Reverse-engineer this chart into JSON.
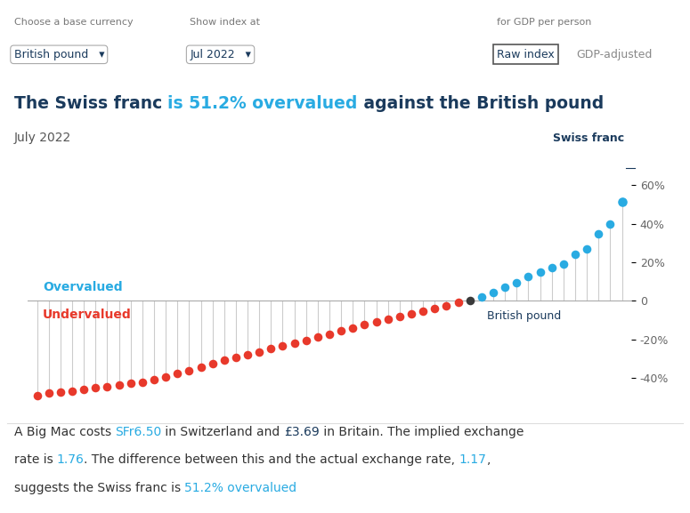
{
  "values": [
    -49.5,
    -48.0,
    -47.5,
    -46.8,
    -46.0,
    -45.2,
    -44.5,
    -43.8,
    -43.0,
    -42.5,
    -41.0,
    -39.5,
    -38.0,
    -36.5,
    -34.5,
    -32.8,
    -31.0,
    -29.5,
    -28.0,
    -26.5,
    -25.0,
    -23.5,
    -22.0,
    -20.5,
    -19.0,
    -17.5,
    -15.5,
    -14.0,
    -12.5,
    -11.0,
    -9.5,
    -8.0,
    -7.0,
    -5.5,
    -4.0,
    -2.5,
    -1.0,
    0.0,
    2.0,
    4.5,
    7.0,
    9.5,
    12.5,
    15.0,
    17.0,
    19.0,
    24.0,
    27.0,
    35.0,
    40.0,
    51.2
  ],
  "british_pound_index": 37,
  "swiss_franc_index": 50,
  "overvalued_color": "#29abe2",
  "undervalued_color": "#e8392b",
  "neutral_color": "#3a3a3a",
  "line_color": "#cccccc",
  "zero_line_color": "#aaaaaa",
  "label_dark_color": "#1a3a5c",
  "label_gray_color": "#555555",
  "background_color": "#ffffff",
  "ylim": [
    -57,
    67
  ],
  "yticks": [
    -40,
    -20,
    0,
    20,
    40,
    60
  ],
  "title_part1": "The Swiss franc ",
  "title_part2": "is 51.2% overvalued",
  "title_part3": " against the British pound",
  "subtitle": "July 2022",
  "overvalued_label": "Overvalued",
  "undervalued_label": "Undervalued",
  "swiss_franc_label": "Swiss franc",
  "british_pound_label": "British pound",
  "ui_base_label": "Choose a base currency",
  "ui_base_value": "British pound",
  "ui_date_label": "Show index at",
  "ui_date_value": "Jul 2022",
  "ui_gdp_label": "for GDP per person",
  "ui_raw_label": "Raw index",
  "ui_gdp_adj_label": "GDP-adjusted",
  "footer_line1": [
    [
      "A Big Mac costs ",
      "#333333"
    ],
    [
      "SFr6.50",
      "#29abe2"
    ],
    [
      " in Switzerland and ",
      "#333333"
    ],
    [
      "£3.69",
      "#1a3a5c"
    ],
    [
      " in Britain. The implied exchange",
      "#333333"
    ]
  ],
  "footer_line2": [
    [
      "rate is ",
      "#333333"
    ],
    [
      "1.76",
      "#29abe2"
    ],
    [
      ". The difference between this and the actual exchange rate, ",
      "#333333"
    ],
    [
      "1.17",
      "#29abe2"
    ],
    [
      ",",
      "#333333"
    ]
  ],
  "footer_line3": [
    [
      "suggests the Swiss franc is ",
      "#333333"
    ],
    [
      "51.2% overvalued",
      "#29abe2"
    ]
  ]
}
